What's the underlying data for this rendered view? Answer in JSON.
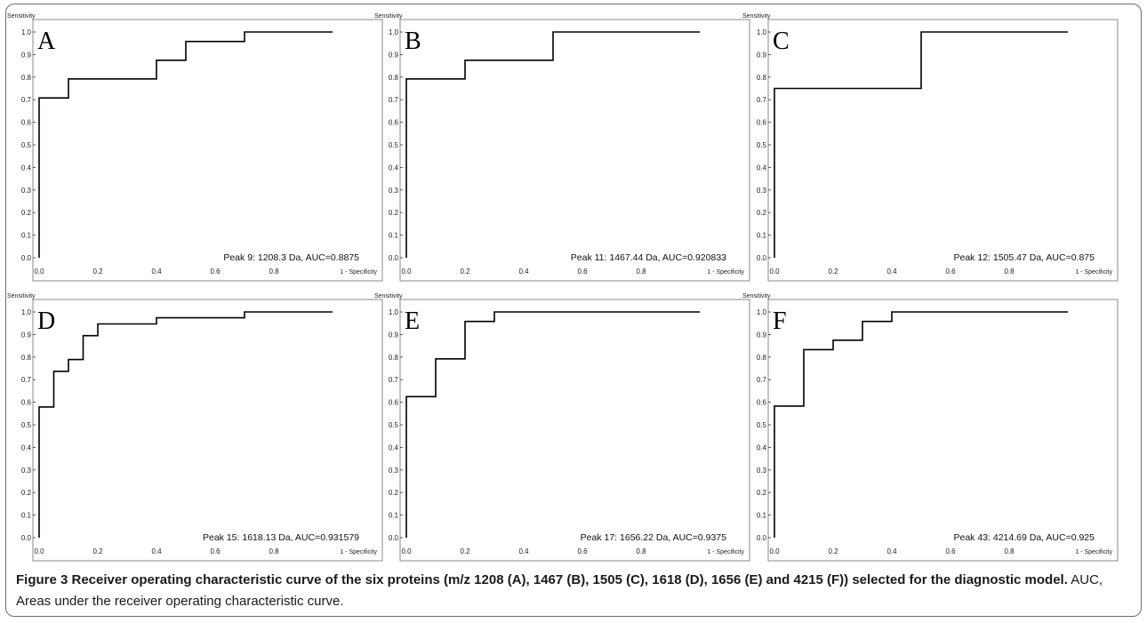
{
  "caption": {
    "bold": "Figure 3 Receiver operating characteristic curve of the six proteins (m/z 1208 (A), 1467 (B), 1505 (C), 1618 (D), 1656 (E) and 4215 (F)) selected for the diagnostic model.",
    "normal": " AUC, Areas under the receiver operating characteristic curve."
  },
  "chart_data": [
    {
      "type": "line",
      "panel": "A",
      "ylabel": "Sensitivity",
      "xlabel": "1 - Specificity",
      "annotation": "Peak 9: 1208.3 Da, AUC=0.8875",
      "xlim": [
        0,
        1
      ],
      "ylim": [
        0,
        1
      ],
      "xticks": [
        "0.0",
        "0.2",
        "0.4",
        "0.6",
        "0.8"
      ],
      "yticks": [
        "0.0",
        "0.1",
        "0.2",
        "0.3",
        "0.4",
        "0.5",
        "0.6",
        "0.7",
        "0.8",
        "0.9",
        "1.0"
      ],
      "x": [
        0,
        0,
        0.1,
        0.1,
        0.4,
        0.4,
        0.5,
        0.5,
        0.7,
        0.7,
        1.0
      ],
      "y": [
        0,
        0.708,
        0.708,
        0.792,
        0.792,
        0.875,
        0.875,
        0.958,
        0.958,
        1.0,
        1.0
      ]
    },
    {
      "type": "line",
      "panel": "B",
      "ylabel": "Sensitivity",
      "xlabel": "1 - Specificity",
      "annotation": "Peak 11: 1467.44 Da, AUC=0.920833",
      "xlim": [
        0,
        1
      ],
      "ylim": [
        0,
        1
      ],
      "xticks": [
        "0.0",
        "0.2",
        "0.4",
        "0.6",
        "0.8"
      ],
      "yticks": [
        "0.0",
        "0.1",
        "0.2",
        "0.3",
        "0.4",
        "0.5",
        "0.6",
        "0.7",
        "0.8",
        "0.9",
        "1.0"
      ],
      "x": [
        0,
        0,
        0.2,
        0.2,
        0.5,
        0.5,
        1.0
      ],
      "y": [
        0,
        0.792,
        0.792,
        0.875,
        0.875,
        1.0,
        1.0
      ]
    },
    {
      "type": "line",
      "panel": "C",
      "ylabel": "Sensitivity",
      "xlabel": "1 - Specificity",
      "annotation": "Peak 12: 1505.47 Da, AUC=0.875",
      "xlim": [
        0,
        1
      ],
      "ylim": [
        0,
        1
      ],
      "xticks": [
        "0.0",
        "0.2",
        "0.4",
        "0.6",
        "0.8"
      ],
      "yticks": [
        "0.0",
        "0.1",
        "0.2",
        "0.3",
        "0.4",
        "0.5",
        "0.6",
        "0.7",
        "0.8",
        "0.9",
        "1.0"
      ],
      "x": [
        0,
        0,
        0.5,
        0.5,
        1.0
      ],
      "y": [
        0,
        0.75,
        0.75,
        1.0,
        1.0
      ]
    },
    {
      "type": "line",
      "panel": "D",
      "ylabel": "Sensitivity",
      "xlabel": "1 - Specificity",
      "annotation": "Peak 15: 1618.13 Da, AUC=0.931579",
      "xlim": [
        0,
        1
      ],
      "ylim": [
        0,
        1
      ],
      "xticks": [
        "0.0",
        "0.2",
        "0.4",
        "0.6",
        "0.8"
      ],
      "yticks": [
        "0.0",
        "0.1",
        "0.2",
        "0.3",
        "0.4",
        "0.5",
        "0.6",
        "0.7",
        "0.8",
        "0.9",
        "1.0"
      ],
      "x": [
        0,
        0,
        0.05,
        0.05,
        0.1,
        0.1,
        0.15,
        0.15,
        0.2,
        0.2,
        0.4,
        0.4,
        0.7,
        0.7,
        1.0
      ],
      "y": [
        0,
        0.579,
        0.579,
        0.737,
        0.737,
        0.789,
        0.789,
        0.895,
        0.895,
        0.947,
        0.947,
        0.974,
        0.974,
        1.0,
        1.0
      ]
    },
    {
      "type": "line",
      "panel": "E",
      "ylabel": "Sensitivity",
      "xlabel": "1 - Specificity",
      "annotation": "Peak 17: 1656.22 Da, AUC=0.9375",
      "xlim": [
        0,
        1
      ],
      "ylim": [
        0,
        1
      ],
      "xticks": [
        "0.0",
        "0.2",
        "0.4",
        "0.6",
        "0.8"
      ],
      "yticks": [
        "0.0",
        "0.1",
        "0.2",
        "0.3",
        "0.4",
        "0.5",
        "0.6",
        "0.7",
        "0.8",
        "0.9",
        "1.0"
      ],
      "x": [
        0,
        0,
        0.1,
        0.1,
        0.2,
        0.2,
        0.3,
        0.3,
        1.0
      ],
      "y": [
        0,
        0.625,
        0.625,
        0.792,
        0.792,
        0.958,
        0.958,
        1.0,
        1.0
      ]
    },
    {
      "type": "line",
      "panel": "F",
      "ylabel": "Sensitivity",
      "xlabel": "1 - Specificity",
      "annotation": "Peak 43: 4214.69 Da, AUC=0.925",
      "xlim": [
        0,
        1
      ],
      "ylim": [
        0,
        1
      ],
      "xticks": [
        "0.0",
        "0.2",
        "0.4",
        "0.6",
        "0.8"
      ],
      "yticks": [
        "0.0",
        "0.1",
        "0.2",
        "0.3",
        "0.4",
        "0.5",
        "0.6",
        "0.7",
        "0.8",
        "0.9",
        "1.0"
      ],
      "x": [
        0,
        0,
        0.1,
        0.1,
        0.2,
        0.2,
        0.3,
        0.3,
        0.4,
        0.4,
        1.0
      ],
      "y": [
        0,
        0.583,
        0.583,
        0.833,
        0.833,
        0.875,
        0.875,
        0.958,
        0.958,
        1.0,
        1.0
      ]
    }
  ]
}
